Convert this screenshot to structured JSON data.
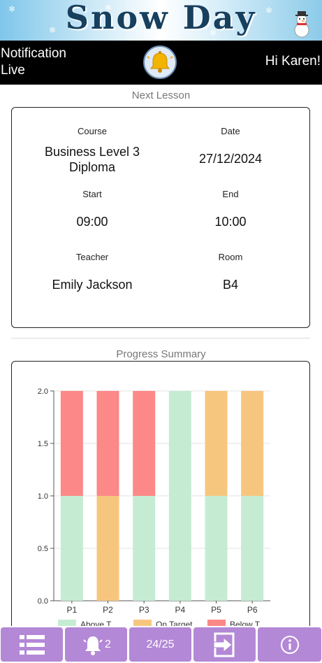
{
  "banner": {
    "title": "Snow Day"
  },
  "header": {
    "notification_label": "Notification Live",
    "greeting": "Hi Karen!"
  },
  "next_lesson": {
    "title": "Next Lesson",
    "course_label": "Course",
    "course_value": "Business Level 3 Diploma",
    "date_label": "Date",
    "date_value": "27/12/2024",
    "start_label": "Start",
    "start_value": "09:00",
    "end_label": "End",
    "end_value": "10:00",
    "teacher_label": "Teacher",
    "teacher_value": "Emily Jackson",
    "room_label": "Room",
    "room_value": "B4"
  },
  "progress": {
    "title": "Progress Summary"
  },
  "chart_data": {
    "type": "bar",
    "stacked": true,
    "categories": [
      "P1",
      "P2",
      "P3",
      "P4",
      "P5",
      "P6"
    ],
    "series": [
      {
        "name": "Above T",
        "color": "#c5ecd3",
        "values": [
          1,
          0,
          1,
          2,
          1,
          1
        ]
      },
      {
        "name": "On Target",
        "color": "#f7c67e",
        "values": [
          0,
          1,
          0,
          0,
          1,
          1
        ]
      },
      {
        "name": "Below T",
        "color": "#fc8888",
        "values": [
          1,
          1,
          1,
          0,
          0,
          0
        ]
      }
    ],
    "ylim": [
      0,
      2
    ],
    "yticks": [
      "0.0",
      "0.5",
      "1.0",
      "1.5",
      "2.0"
    ],
    "grid": true,
    "legend": "bottom"
  },
  "bottom_nav": {
    "notification_count": "2",
    "progress_count": "24/25"
  },
  "icons": {
    "menu": "menu-icon",
    "bell": "bell-icon",
    "logout": "logout-icon",
    "info": "info-icon"
  }
}
